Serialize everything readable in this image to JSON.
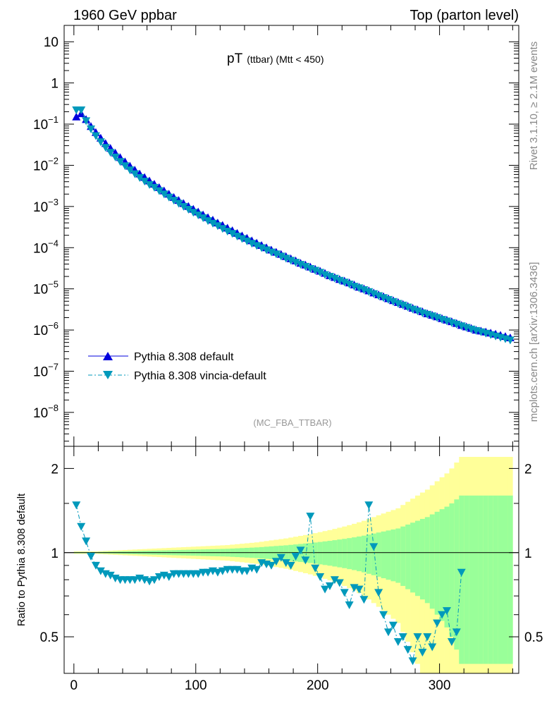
{
  "header": {
    "left": "1960 GeV ppbar",
    "right": "Top (parton level)"
  },
  "side_labels": {
    "rivet": "Rivet 3.1.10, ≥ 2.1M events",
    "mcplots": "mcplots.cern.ch [arXiv:1306.3436]"
  },
  "chart_data": [
    {
      "type": "line",
      "panel": "main",
      "title_main": "pT",
      "title_sub": "(ttbar) (Mtt < 450)",
      "watermark": "(MC_FBA_TTBAR)",
      "log_y": true,
      "xlim": [
        -8,
        365
      ],
      "ylim": [
        1.5e-09,
        25
      ],
      "y_ticks": [
        {
          "value": 10,
          "base": "10",
          "exp": ""
        },
        {
          "value": 1,
          "base": "1",
          "exp": ""
        },
        {
          "value": 0.1,
          "base": "10",
          "exp": "−1"
        },
        {
          "value": 0.01,
          "base": "10",
          "exp": "−2"
        },
        {
          "value": 0.001,
          "base": "10",
          "exp": "−3"
        },
        {
          "value": 0.0001,
          "base": "10",
          "exp": "−4"
        },
        {
          "value": 1e-05,
          "base": "10",
          "exp": "−5"
        },
        {
          "value": 1e-06,
          "base": "10",
          "exp": "−6"
        },
        {
          "value": 1e-07,
          "base": "10",
          "exp": "−7"
        },
        {
          "value": 1e-08,
          "base": "10",
          "exp": "−8"
        }
      ],
      "legend_position": "lower-left",
      "series": [
        {
          "name": "Pythia 8.308 default",
          "color": "#0000dd",
          "marker": "triangle-up",
          "line": "solid",
          "x": [
            2,
            6,
            10,
            14,
            18,
            22,
            26,
            30,
            34,
            38,
            42,
            46,
            50,
            54,
            58,
            62,
            66,
            70,
            74,
            78,
            82,
            86,
            90,
            94,
            98,
            102,
            106,
            110,
            114,
            118,
            122,
            126,
            130,
            134,
            138,
            142,
            146,
            150,
            154,
            158,
            162,
            166,
            170,
            174,
            178,
            182,
            186,
            190,
            194,
            198,
            202,
            206,
            210,
            214,
            218,
            222,
            226,
            230,
            234,
            238,
            242,
            246,
            250,
            254,
            258,
            262,
            266,
            270,
            274,
            278,
            282,
            286,
            290,
            294,
            298,
            302,
            306,
            310,
            314,
            318,
            322,
            326,
            330,
            334,
            338,
            342,
            346,
            350,
            354,
            358
          ],
          "y": [
            0.15,
            0.18,
            0.13,
            0.088,
            0.063,
            0.046,
            0.034,
            0.026,
            0.02,
            0.0155,
            0.0122,
            0.0096,
            0.0077,
            0.0062,
            0.0051,
            0.0042,
            0.0035,
            0.0029,
            0.0024,
            0.002,
            0.00167,
            0.00141,
            0.00119,
            0.00101,
            0.00086,
            0.00074,
            0.00063,
            0.00054,
            0.00047,
            0.0004,
            0.00035,
            0.0003,
            0.00026,
            0.000225,
            0.000195,
            0.00017,
            0.000148,
            0.00013,
            0.000114,
            0.0001,
            8.8e-05,
            7.8e-05,
            6.9e-05,
            6.1e-05,
            5.4e-05,
            4.8e-05,
            4.2e-05,
            3.8e-05,
            3.4e-05,
            3e-05,
            2.7e-05,
            2.4e-05,
            2.1e-05,
            1.9e-05,
            1.7e-05,
            1.55e-05,
            1.4e-05,
            1.25e-05,
            1.1e-05,
            1e-05,
            9e-06,
            8e-06,
            7.2e-06,
            6.5e-06,
            5.8e-06,
            5.2e-06,
            4.7e-06,
            4.2e-06,
            3.8e-06,
            3.4e-06,
            3.1e-06,
            2.8e-06,
            2.5e-06,
            2.3e-06,
            2.1e-06,
            1.9e-06,
            1.75e-06,
            1.6e-06,
            1.45e-06,
            1.3e-06,
            1.2e-06,
            1.1e-06,
            1e-06,
            9.5e-07,
            9e-07,
            8.5e-07,
            8e-07,
            7.5e-07,
            7e-07,
            6.5e-07
          ]
        },
        {
          "name": "Pythia 8.308 vincia-default",
          "color": "#0099bb",
          "marker": "triangle-down",
          "line": "dash-dot",
          "x": [
            2,
            6,
            10,
            14,
            18,
            22,
            26,
            30,
            34,
            38,
            42,
            46,
            50,
            54,
            58,
            62,
            66,
            70,
            74,
            78,
            82,
            86,
            90,
            94,
            98,
            102,
            106,
            110,
            114,
            118,
            122,
            126,
            130,
            134,
            138,
            142,
            146,
            150,
            154,
            158,
            162,
            166,
            170,
            174,
            178,
            182,
            186,
            190,
            194,
            198,
            202,
            206,
            210,
            214,
            218,
            222,
            226,
            230,
            234,
            238,
            242,
            246,
            250,
            254,
            258,
            262,
            266,
            270,
            274,
            278,
            282,
            286,
            290,
            294,
            298,
            302,
            306,
            310,
            314,
            318,
            322,
            326,
            330,
            334,
            338,
            342,
            346,
            350,
            354,
            358
          ],
          "y": [
            0.22,
            0.22,
            0.12,
            0.076,
            0.052,
            0.037,
            0.027,
            0.0205,
            0.0158,
            0.0123,
            0.0097,
            0.0077,
            0.0062,
            0.005,
            0.0041,
            0.0034,
            0.0029,
            0.0024,
            0.002,
            0.00168,
            0.00141,
            0.00119,
            0.001,
            0.00085,
            0.00072,
            0.00062,
            0.00053,
            0.00045,
            0.00039,
            0.00034,
            0.00029,
            0.00025,
            0.00022,
            0.00019,
            0.000165,
            0.000145,
            0.000127,
            0.000112,
            9.9e-05,
            8.8e-05,
            7.8e-05,
            7e-05,
            6.2e-05,
            5.5e-05,
            4.9e-05,
            4.4e-05,
            3.9e-05,
            3.5e-05,
            3.1e-05,
            2.8e-05,
            2.5e-05,
            2.2e-05,
            2e-05,
            1.8e-05,
            1.6e-05,
            1.45e-05,
            1.3e-05,
            1.15e-05,
            1.05e-05,
            9.5e-06,
            8.5e-06,
            7.6e-06,
            6.8e-06,
            6.1e-06,
            5.5e-06,
            4.9e-06,
            4.4e-06,
            4e-06,
            3.6e-06,
            3.2e-06,
            2.9e-06,
            2.6e-06,
            2.4e-06,
            2.2e-06,
            2e-06,
            1.8e-06,
            1.65e-06,
            1.5e-06,
            1.38e-06,
            1.26e-06,
            1.15e-06,
            1.05e-06,
            9.7e-07,
            9e-07,
            8.3e-07,
            7.7e-07,
            7.1e-07,
            6.6e-07,
            6.1e-07,
            5.7e-07
          ]
        }
      ]
    },
    {
      "type": "line",
      "panel": "ratio",
      "ylabel": "Ratio to Pythia 8.308 default",
      "xlim": [
        -8,
        365
      ],
      "ylim": [
        0.37,
        2.4
      ],
      "y_ticks": [
        0.5,
        1,
        2
      ],
      "x_ticks": [
        0,
        100,
        200,
        300
      ],
      "reference_line": 1,
      "bands": {
        "x_edges": [
          0,
          4,
          8,
          12,
          16,
          20,
          24,
          28,
          32,
          36,
          40,
          44,
          48,
          52,
          56,
          60,
          64,
          68,
          72,
          76,
          80,
          84,
          88,
          92,
          96,
          100,
          104,
          108,
          112,
          116,
          120,
          124,
          128,
          132,
          136,
          140,
          144,
          148,
          152,
          156,
          160,
          164,
          168,
          172,
          176,
          180,
          184,
          188,
          192,
          196,
          200,
          204,
          208,
          212,
          216,
          220,
          224,
          228,
          232,
          236,
          240,
          244,
          248,
          252,
          256,
          260,
          264,
          268,
          272,
          276,
          280,
          284,
          288,
          292,
          296,
          300,
          304,
          308,
          312,
          316,
          320,
          324,
          328,
          332,
          336,
          340,
          344,
          348,
          352,
          356,
          360
        ],
        "inner_color": "#99ff99",
        "outer_color": "#ffff99",
        "inner_halfwidth": [
          0.005,
          0.005,
          0.005,
          0.005,
          0.005,
          0.006,
          0.007,
          0.008,
          0.009,
          0.01,
          0.011,
          0.012,
          0.013,
          0.014,
          0.015,
          0.016,
          0.017,
          0.018,
          0.019,
          0.02,
          0.021,
          0.022,
          0.023,
          0.024,
          0.025,
          0.026,
          0.027,
          0.028,
          0.029,
          0.03,
          0.031,
          0.032,
          0.034,
          0.036,
          0.038,
          0.04,
          0.042,
          0.044,
          0.047,
          0.05,
          0.053,
          0.056,
          0.059,
          0.062,
          0.066,
          0.07,
          0.074,
          0.078,
          0.082,
          0.087,
          0.092,
          0.097,
          0.102,
          0.108,
          0.114,
          0.12,
          0.127,
          0.134,
          0.142,
          0.15,
          0.16,
          0.17,
          0.18,
          0.19,
          0.2,
          0.21,
          0.22,
          0.24,
          0.26,
          0.28,
          0.3,
          0.32,
          0.34,
          0.37,
          0.4,
          0.43,
          0.46,
          0.5,
          0.55,
          0.6,
          0.6,
          0.6,
          0.6,
          0.6,
          0.6,
          0.6,
          0.6,
          0.6,
          0.6,
          0.6
        ],
        "outer_halfwidth": [
          0.01,
          0.01,
          0.01,
          0.01,
          0.01,
          0.012,
          0.014,
          0.016,
          0.018,
          0.02,
          0.022,
          0.024,
          0.026,
          0.028,
          0.03,
          0.032,
          0.034,
          0.036,
          0.038,
          0.04,
          0.042,
          0.044,
          0.046,
          0.048,
          0.05,
          0.052,
          0.054,
          0.056,
          0.058,
          0.06,
          0.062,
          0.064,
          0.068,
          0.072,
          0.076,
          0.08,
          0.084,
          0.088,
          0.094,
          0.1,
          0.106,
          0.112,
          0.118,
          0.124,
          0.132,
          0.14,
          0.148,
          0.156,
          0.164,
          0.174,
          0.184,
          0.194,
          0.204,
          0.216,
          0.228,
          0.24,
          0.254,
          0.268,
          0.284,
          0.3,
          0.32,
          0.34,
          0.36,
          0.38,
          0.4,
          0.42,
          0.44,
          0.48,
          0.52,
          0.56,
          0.6,
          0.64,
          0.68,
          0.74,
          0.8,
          0.86,
          0.92,
          1.0,
          1.1,
          1.2,
          1.2,
          1.2,
          1.2,
          1.2,
          1.2,
          1.2,
          1.2,
          1.2,
          1.2,
          1.2
        ]
      },
      "ratio_series": {
        "name": "Pythia 8.308 vincia-default",
        "color": "#0099bb",
        "x": [
          2,
          6,
          10,
          14,
          18,
          22,
          26,
          30,
          34,
          38,
          42,
          46,
          50,
          54,
          58,
          62,
          66,
          70,
          74,
          78,
          82,
          86,
          90,
          94,
          98,
          102,
          106,
          110,
          114,
          118,
          122,
          126,
          130,
          134,
          138,
          142,
          146,
          150,
          154,
          158,
          162,
          166,
          170,
          174,
          178,
          182,
          186,
          190,
          194,
          198,
          202,
          206,
          210,
          214,
          218,
          222,
          226,
          230,
          234,
          238,
          242,
          246,
          250,
          254,
          258,
          262,
          266,
          270,
          274,
          278,
          282,
          286,
          290,
          294,
          298,
          302,
          306,
          310,
          314,
          318
        ],
        "y": [
          1.48,
          1.24,
          1.1,
          0.97,
          0.9,
          0.86,
          0.84,
          0.83,
          0.81,
          0.8,
          0.8,
          0.8,
          0.8,
          0.81,
          0.8,
          0.79,
          0.8,
          0.82,
          0.83,
          0.82,
          0.84,
          0.84,
          0.84,
          0.84,
          0.84,
          0.84,
          0.85,
          0.85,
          0.86,
          0.85,
          0.86,
          0.87,
          0.87,
          0.87,
          0.86,
          0.86,
          0.88,
          0.87,
          0.92,
          0.91,
          0.9,
          0.93,
          0.96,
          0.92,
          0.9,
          0.97,
          1.02,
          0.94,
          1.35,
          0.88,
          0.82,
          0.74,
          0.76,
          0.8,
          0.78,
          0.72,
          0.65,
          0.75,
          0.74,
          0.68,
          1.48,
          1.05,
          0.72,
          0.6,
          0.52,
          0.55,
          0.48,
          0.5,
          0.45,
          0.41,
          0.5,
          0.44,
          0.5,
          0.46,
          0.56,
          0.6,
          0.62,
          0.48,
          0.52,
          0.85
        ]
      }
    }
  ]
}
